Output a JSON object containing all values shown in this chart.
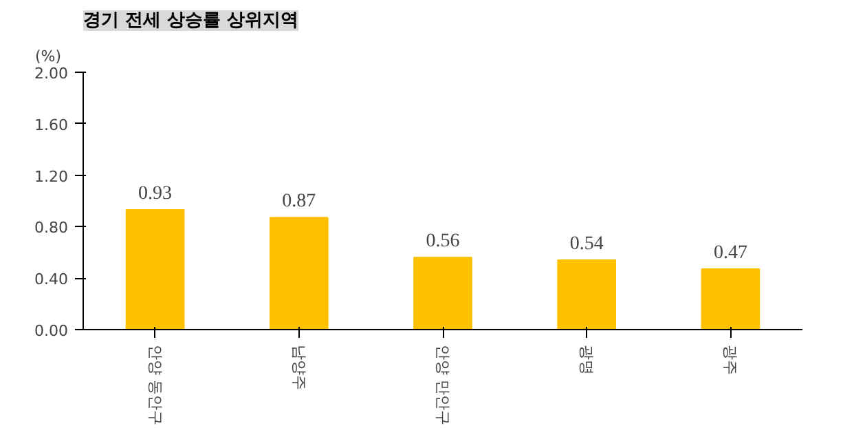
{
  "chart_data": {
    "type": "bar",
    "title": "경기 전세 상승률 상위지역",
    "ylabel": "(%)",
    "categories": [
      "안양 동안구",
      "남양주",
      "안양 만안구",
      "광명",
      "광주"
    ],
    "values": [
      0.93,
      0.87,
      0.56,
      0.54,
      0.47
    ],
    "color": "#ffc000",
    "ylim": [
      0,
      2
    ],
    "yticks": [
      {
        "value": 0,
        "label": "0.00"
      },
      {
        "value": 0.4,
        "label": "0.40"
      },
      {
        "value": 0.8,
        "label": "0.80"
      },
      {
        "value": 1.2,
        "label": "1.20"
      },
      {
        "value": 1.6,
        "label": "1.60"
      },
      {
        "value": 2,
        "label": "2.00"
      }
    ],
    "data_labels": true,
    "grid": false
  }
}
